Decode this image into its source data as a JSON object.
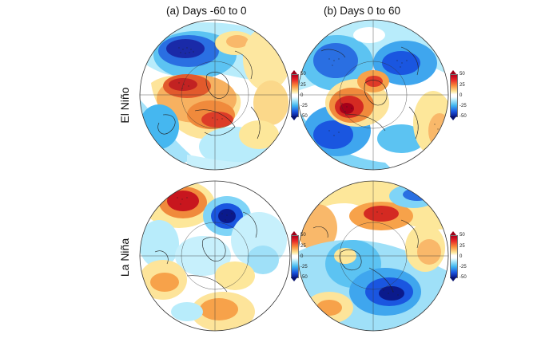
{
  "columns": [
    "(a) Days -60 to 0",
    "(b) Days 0 to 60"
  ],
  "rows": [
    "El Niño",
    "La Niña"
  ],
  "colorbar": {
    "ticks": [
      "50",
      "25",
      "0",
      "-25",
      "-50"
    ],
    "colors": [
      "#b3001c",
      "#e8272a",
      "#f98b3a",
      "#fde79a",
      "#ffffff",
      "#b7ecfb",
      "#3fb6ef",
      "#1a56e0",
      "#0b1a8c"
    ]
  }
}
